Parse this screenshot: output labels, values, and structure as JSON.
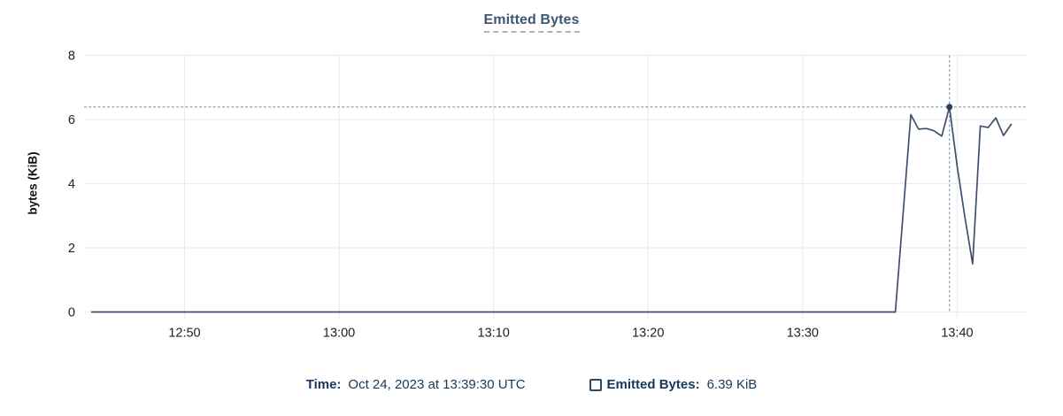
{
  "chart_data": {
    "type": "line",
    "title": "Emitted Bytes",
    "ylabel": "bytes (KiB)",
    "x_domain": [
      "12:43:30",
      "13:44:30"
    ],
    "ylim": [
      0,
      8
    ],
    "x_ticks": [
      "12:50",
      "13:00",
      "13:10",
      "13:20",
      "13:30",
      "13:40"
    ],
    "y_ticks": [
      0,
      2,
      4,
      6,
      8
    ],
    "grid": true,
    "legend_position": "bottom",
    "series": [
      {
        "name": "Emitted Bytes",
        "unit": "KiB",
        "points": [
          [
            "12:44:00",
            0
          ],
          [
            "13:36:00",
            0
          ],
          [
            "13:36:30",
            3.05
          ],
          [
            "13:37:00",
            6.15
          ],
          [
            "13:37:30",
            5.7
          ],
          [
            "13:38:00",
            5.72
          ],
          [
            "13:38:30",
            5.65
          ],
          [
            "13:39:00",
            5.48
          ],
          [
            "13:39:30",
            6.39
          ],
          [
            "13:40:00",
            4.55
          ],
          [
            "13:40:30",
            2.95
          ],
          [
            "13:41:00",
            1.5
          ],
          [
            "13:41:30",
            5.8
          ],
          [
            "13:42:00",
            5.75
          ],
          [
            "13:42:30",
            6.05
          ],
          [
            "13:43:00",
            5.5
          ],
          [
            "13:43:30",
            5.85
          ]
        ]
      }
    ],
    "hover_point": {
      "time": "13:39:30",
      "value": 6.39
    }
  },
  "tooltip": {
    "time_label": "Time:",
    "time_value": "Oct 24, 2023 at 13:39:30 UTC",
    "series_label": "Emitted Bytes:",
    "series_value": "6.39 KiB"
  },
  "colors": {
    "series_line": "#3e506e",
    "marker": "#2c3e5d",
    "crosshair": "#8fa3b5",
    "grid": "#ececef",
    "title_text": "#3f5574",
    "title_underline": "#a8b4c4",
    "tick_text": "#202124",
    "tooltip_text": "#16395b",
    "checkbox_border": "#2a4a66"
  }
}
